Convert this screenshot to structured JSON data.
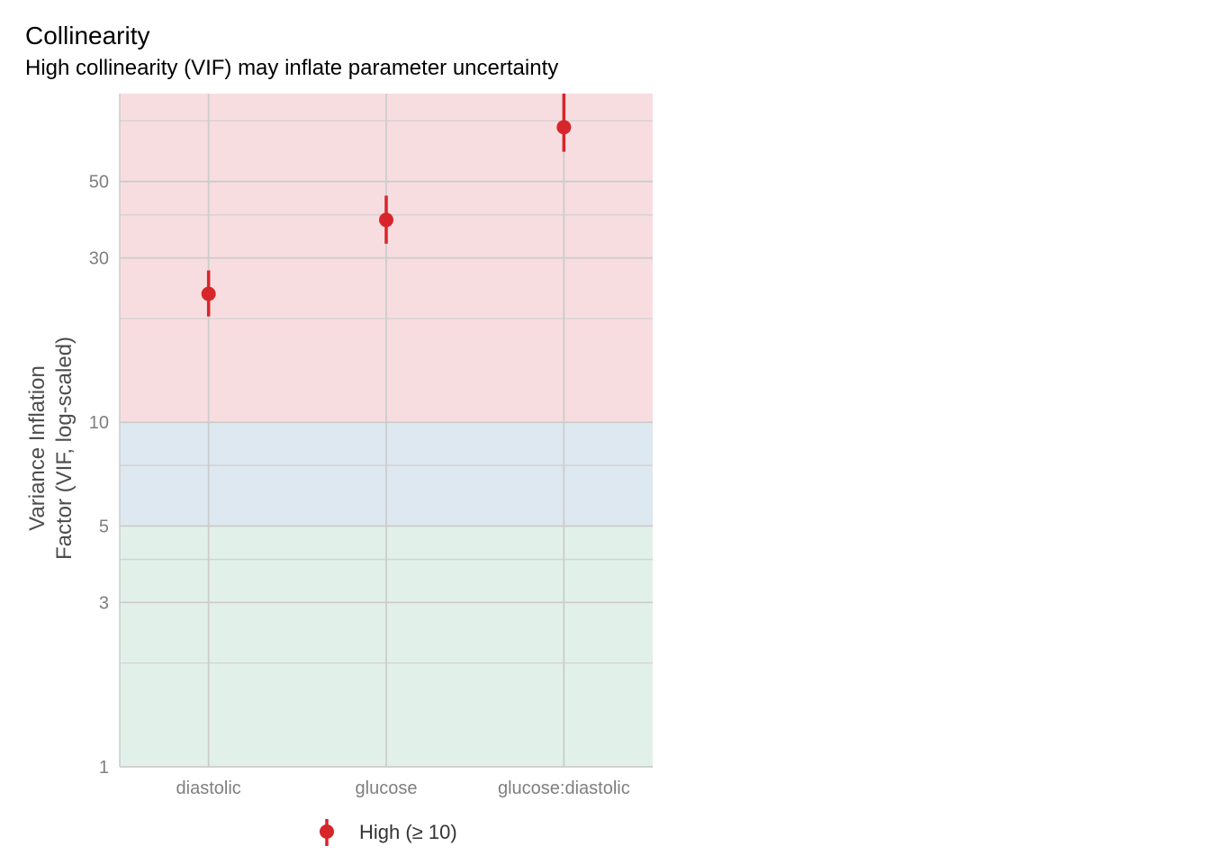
{
  "chart_data": {
    "type": "scatter",
    "title": "Collinearity",
    "subtitle": "High collinearity (VIF) may inflate parameter uncertainty",
    "ylabel_lines": [
      "Variance Inflation",
      "Factor (VIF, log-scaled)"
    ],
    "xlabel": "",
    "y_scale": "log",
    "ylim": [
      1,
      90
    ],
    "y_ticks": [
      1,
      3,
      5,
      10,
      30,
      50
    ],
    "y_minor_gridlines": [
      2,
      4,
      7.5,
      20,
      40,
      75
    ],
    "categories": [
      "diastolic",
      "glucose",
      "glucose:diastolic"
    ],
    "series": [
      {
        "name": "High (≥ 10)",
        "color": "#d7262b",
        "values": [
          23.6,
          38.7,
          71.9
        ],
        "ci_low": [
          20.3,
          33.0,
          61.0
        ],
        "ci_high": [
          27.6,
          45.5,
          90.0
        ]
      }
    ],
    "bands": [
      {
        "from": 1,
        "to": 5,
        "color": "#e1f1ea"
      },
      {
        "from": 5,
        "to": 10,
        "color": "#dee8f0"
      },
      {
        "from": 10,
        "to": 90,
        "color": "#f8dde0"
      }
    ],
    "legend": {
      "position": "bottom",
      "label": "High (≥ 10)"
    },
    "grid": true
  }
}
